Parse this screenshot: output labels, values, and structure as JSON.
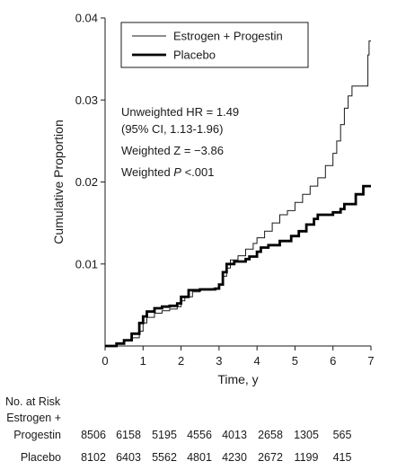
{
  "chart_data": {
    "type": "line",
    "subtype": "kaplan-meier-step",
    "xlabel": "Time, y",
    "ylabel": "Cumulative Proportion",
    "xlim": [
      0,
      7
    ],
    "ylim": [
      0,
      0.04
    ],
    "x_ticks": [
      "0",
      "1",
      "2",
      "3",
      "4",
      "5",
      "6",
      "7"
    ],
    "y_ticks": [
      "0.01",
      "0.02",
      "0.03",
      "0.04"
    ],
    "legend_position": "top-right",
    "series": [
      {
        "name": "Estrogen + Progestin",
        "color": "#1a1a1a",
        "line_weight": "thin",
        "points": [
          [
            0,
            0
          ],
          [
            0.3,
            0.0003
          ],
          [
            0.5,
            0.0006
          ],
          [
            0.7,
            0.001
          ],
          [
            0.9,
            0.0018
          ],
          [
            1.0,
            0.0028
          ],
          [
            1.1,
            0.0035
          ],
          [
            1.3,
            0.004
          ],
          [
            1.5,
            0.0043
          ],
          [
            1.7,
            0.0045
          ],
          [
            1.9,
            0.0048
          ],
          [
            2.0,
            0.0055
          ],
          [
            2.1,
            0.006
          ],
          [
            2.3,
            0.0066
          ],
          [
            2.5,
            0.0068
          ],
          [
            2.8,
            0.007
          ],
          [
            3.0,
            0.0075
          ],
          [
            3.1,
            0.0085
          ],
          [
            3.2,
            0.0095
          ],
          [
            3.3,
            0.0105
          ],
          [
            3.5,
            0.011
          ],
          [
            3.7,
            0.0118
          ],
          [
            3.9,
            0.0125
          ],
          [
            4.0,
            0.0132
          ],
          [
            4.2,
            0.014
          ],
          [
            4.4,
            0.015
          ],
          [
            4.6,
            0.016
          ],
          [
            4.8,
            0.0165
          ],
          [
            5.0,
            0.0175
          ],
          [
            5.2,
            0.0185
          ],
          [
            5.4,
            0.0195
          ],
          [
            5.6,
            0.0205
          ],
          [
            5.8,
            0.022
          ],
          [
            6.0,
            0.0235
          ],
          [
            6.1,
            0.025
          ],
          [
            6.2,
            0.027
          ],
          [
            6.3,
            0.029
          ],
          [
            6.4,
            0.0305
          ],
          [
            6.5,
            0.0317
          ],
          [
            6.9,
            0.0317
          ],
          [
            6.92,
            0.0355
          ],
          [
            6.95,
            0.0372
          ],
          [
            7.0,
            0.0372
          ]
        ]
      },
      {
        "name": "Placebo",
        "color": "#000000",
        "line_weight": "thick",
        "points": [
          [
            0,
            0
          ],
          [
            0.3,
            0.0003
          ],
          [
            0.5,
            0.0007
          ],
          [
            0.7,
            0.0015
          ],
          [
            0.9,
            0.0028
          ],
          [
            1.0,
            0.0036
          ],
          [
            1.1,
            0.0042
          ],
          [
            1.3,
            0.0046
          ],
          [
            1.5,
            0.0048
          ],
          [
            1.7,
            0.0049
          ],
          [
            1.9,
            0.0052
          ],
          [
            2.0,
            0.006
          ],
          [
            2.2,
            0.0068
          ],
          [
            2.5,
            0.0069
          ],
          [
            2.9,
            0.007
          ],
          [
            3.0,
            0.0075
          ],
          [
            3.1,
            0.009
          ],
          [
            3.2,
            0.01
          ],
          [
            3.4,
            0.0103
          ],
          [
            3.7,
            0.0106
          ],
          [
            3.8,
            0.0109
          ],
          [
            4.0,
            0.0115
          ],
          [
            4.1,
            0.012
          ],
          [
            4.3,
            0.0123
          ],
          [
            4.6,
            0.0128
          ],
          [
            4.9,
            0.0134
          ],
          [
            5.1,
            0.014
          ],
          [
            5.3,
            0.0148
          ],
          [
            5.5,
            0.0155
          ],
          [
            5.6,
            0.016
          ],
          [
            5.8,
            0.016
          ],
          [
            6.0,
            0.0163
          ],
          [
            6.2,
            0.0167
          ],
          [
            6.3,
            0.0173
          ],
          [
            6.5,
            0.0173
          ],
          [
            6.6,
            0.0185
          ],
          [
            6.8,
            0.0195
          ],
          [
            7.0,
            0.0195
          ]
        ]
      }
    ],
    "annotations": [
      {
        "text": "Unweighted HR = 1.49"
      },
      {
        "text": "(95% CI, 1.13-1.96)"
      },
      {
        "text": "Weighted Z = −3.86"
      },
      {
        "text": "Weighted ",
        "italic_part": "P",
        "rest": " <.001"
      }
    ]
  },
  "risk_table": {
    "title": "No. at Risk",
    "rows": [
      {
        "label_line1": "Estrogen +",
        "label_line2": "Progestin",
        "values": [
          "8506",
          "6158",
          "5195",
          "4556",
          "4013",
          "2658",
          "1305",
          "565"
        ]
      },
      {
        "label_line1": "",
        "label_line2": "Placebo",
        "values": [
          "8102",
          "6403",
          "5562",
          "4801",
          "4230",
          "2672",
          "1199",
          "415"
        ]
      }
    ]
  }
}
